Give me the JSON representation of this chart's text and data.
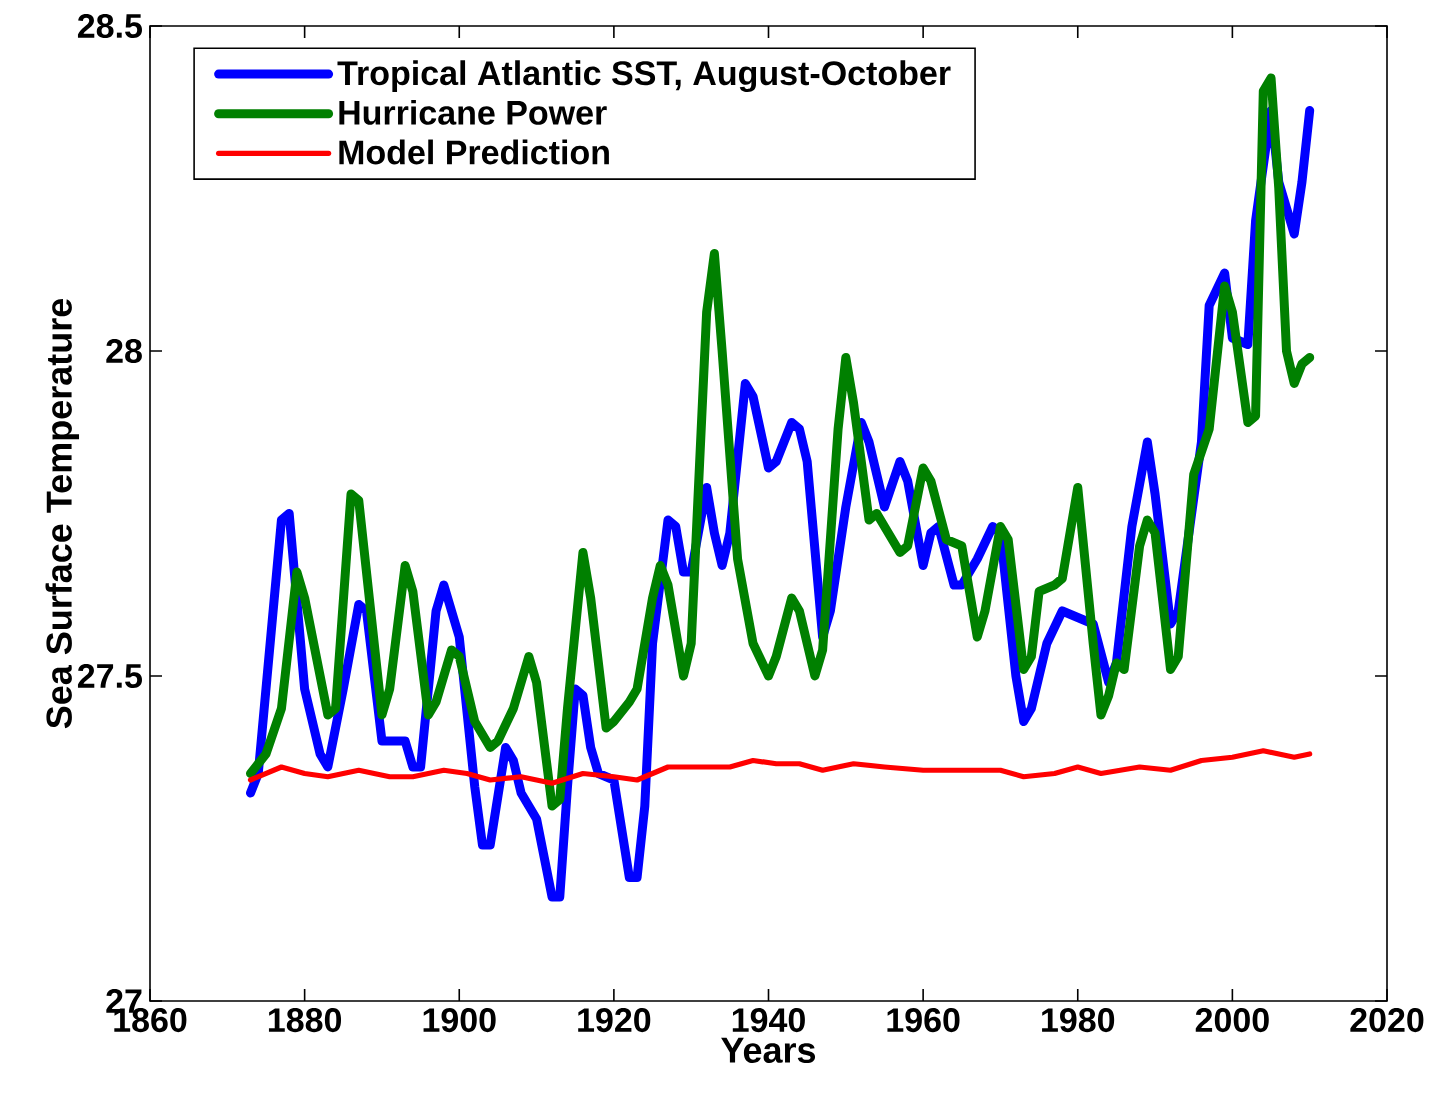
{
  "chart_data": {
    "type": "line",
    "xlabel": "Years",
    "ylabel": "Sea Surface Temperature",
    "xlim": [
      1860,
      2020
    ],
    "ylim": [
      27,
      28.5
    ],
    "xticks": [
      1860,
      1880,
      1900,
      1920,
      1940,
      1960,
      1980,
      2000,
      2020
    ],
    "yticks": [
      27,
      27.5,
      28,
      28.5
    ],
    "legend": "top left",
    "series": [
      {
        "name": "Tropical Atlantic SST, August-October",
        "color": "#0000ff",
        "x": [
          1873,
          1874,
          1877,
          1878,
          1880,
          1882,
          1883,
          1885,
          1887,
          1888,
          1890,
          1892,
          1893,
          1894,
          1895,
          1897,
          1898,
          1900,
          1902,
          1903,
          1904,
          1906,
          1907,
          1908,
          1910,
          1911,
          1912,
          1913,
          1914,
          1915,
          1916,
          1917,
          1918,
          1920,
          1922,
          1923,
          1924,
          1925,
          1927,
          1928,
          1929,
          1930,
          1932,
          1933,
          1934,
          1935,
          1937,
          1938,
          1940,
          1941,
          1943,
          1944,
          1945,
          1947,
          1948,
          1950,
          1952,
          1953,
          1955,
          1957,
          1958,
          1960,
          1961,
          1962,
          1964,
          1965,
          1967,
          1969,
          1970,
          1972,
          1973,
          1974,
          1976,
          1978,
          1980,
          1982,
          1984,
          1985,
          1987,
          1989,
          1990,
          1992,
          1993,
          1996,
          1997,
          1999,
          2000,
          2002,
          2003,
          2005,
          2006,
          2008,
          2009,
          2010
        ],
        "values": [
          27.32,
          27.35,
          27.74,
          27.75,
          27.48,
          27.38,
          27.36,
          27.48,
          27.61,
          27.6,
          27.4,
          27.4,
          27.4,
          27.36,
          27.36,
          27.6,
          27.64,
          27.56,
          27.33,
          27.24,
          27.24,
          27.39,
          27.37,
          27.32,
          27.28,
          27.22,
          27.16,
          27.16,
          27.33,
          27.48,
          27.47,
          27.39,
          27.35,
          27.34,
          27.19,
          27.19,
          27.3,
          27.55,
          27.74,
          27.73,
          27.66,
          27.66,
          27.79,
          27.72,
          27.67,
          27.72,
          27.95,
          27.93,
          27.82,
          27.83,
          27.89,
          27.88,
          27.83,
          27.56,
          27.6,
          27.76,
          27.89,
          27.86,
          27.76,
          27.83,
          27.8,
          27.67,
          27.72,
          27.73,
          27.64,
          27.64,
          27.68,
          27.73,
          27.72,
          27.5,
          27.43,
          27.45,
          27.55,
          27.6,
          null,
          27.58,
          27.49,
          27.52,
          27.73,
          27.86,
          27.78,
          27.58,
          27.6,
          27.86,
          28.07,
          28.12,
          28.02,
          28.01,
          28.2,
          28.37,
          28.26,
          28.18,
          28.26,
          28.37
        ]
      },
      {
        "name": "Hurricane Power",
        "color": "#008000",
        "x": [
          1873,
          1875,
          1877,
          1879,
          1880,
          1883,
          1884,
          1886,
          1887,
          1890,
          1891,
          1893,
          1894,
          1896,
          1897,
          1899,
          1900,
          1902,
          1904,
          1905,
          1907,
          1909,
          1910,
          1912,
          1913,
          1914,
          1916,
          1917,
          1919,
          1920,
          1922,
          1923,
          1925,
          1926,
          1927,
          1929,
          1930,
          1932,
          1933,
          1934,
          1936,
          1938,
          1940,
          1941,
          1943,
          1944,
          1946,
          1947,
          1949,
          1950,
          1951,
          1953,
          1954,
          1956,
          1957,
          1958,
          1960,
          1961,
          1963,
          1965,
          1967,
          1968,
          1970,
          1971,
          1973,
          1974,
          1975,
          1977,
          1978,
          1980,
          1982,
          1983,
          1984,
          1985,
          1986,
          1988,
          1989,
          1990,
          1992,
          1993,
          1995,
          1997,
          1999,
          2000,
          2002,
          2003,
          2004,
          2005,
          2006,
          2007,
          2008,
          2009,
          2010
        ],
        "values": [
          27.35,
          27.38,
          27.45,
          27.66,
          27.62,
          27.44,
          27.45,
          27.78,
          27.77,
          27.44,
          27.48,
          27.67,
          27.63,
          27.44,
          27.46,
          27.54,
          27.53,
          27.43,
          27.39,
          27.4,
          27.45,
          27.53,
          27.49,
          27.3,
          27.31,
          27.45,
          27.69,
          27.62,
          27.42,
          27.43,
          27.46,
          27.48,
          27.62,
          27.67,
          27.64,
          27.5,
          27.55,
          28.06,
          28.15,
          28.0,
          27.68,
          27.55,
          27.5,
          27.53,
          27.62,
          27.6,
          27.5,
          27.54,
          27.88,
          27.99,
          27.92,
          27.74,
          27.75,
          27.71,
          27.69,
          27.7,
          27.82,
          27.8,
          27.71,
          27.7,
          27.56,
          27.6,
          27.73,
          27.71,
          27.51,
          27.53,
          27.63,
          27.64,
          27.65,
          27.79,
          27.55,
          27.44,
          27.47,
          27.52,
          27.51,
          27.7,
          27.74,
          27.72,
          27.51,
          27.53,
          27.81,
          27.88,
          28.1,
          28.06,
          27.89,
          27.9,
          28.4,
          28.42,
          28.25,
          28.0,
          27.95,
          27.98,
          27.99
        ]
      },
      {
        "name": "Model Prediction",
        "color": "#ff0000",
        "x": [
          1873,
          1877,
          1880,
          1883,
          1887,
          1891,
          1894,
          1898,
          1901,
          1904,
          1908,
          1912,
          1916,
          1920,
          1923,
          1927,
          1931,
          1935,
          1938,
          1941,
          1944,
          1947,
          1951,
          1955,
          1960,
          1965,
          1970,
          1973,
          1977,
          1980,
          1983,
          1988,
          1992,
          1996,
          2000,
          2004,
          2008,
          2010
        ],
        "values": [
          27.34,
          27.36,
          27.35,
          27.345,
          27.355,
          27.345,
          27.345,
          27.355,
          27.35,
          27.34,
          27.345,
          27.335,
          27.35,
          27.345,
          27.34,
          27.36,
          27.36,
          27.36,
          27.37,
          27.365,
          27.365,
          27.355,
          27.365,
          27.36,
          27.355,
          27.355,
          27.355,
          27.345,
          27.35,
          27.36,
          27.35,
          27.36,
          27.355,
          27.37,
          27.375,
          27.385,
          27.375,
          27.38
        ]
      }
    ]
  }
}
